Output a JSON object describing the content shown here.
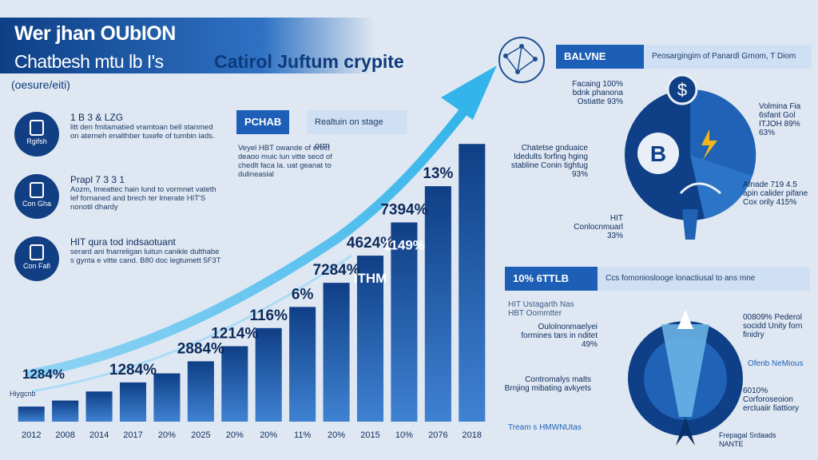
{
  "header": {
    "line1": "Wer jhan OUbION",
    "line2a": "Chatbesh mtu lb I's",
    "line2b": "Catirol Juftum crypite",
    "line3": "(oesure/eiti)"
  },
  "features": [
    {
      "icon": "document-icon",
      "caption": "Rgifsh",
      "title": "1 B 3 & LZG",
      "text": "litt den fmitamatied vramtoan bell stanmed on aterneh enalthber tuxefe of tumbin iads."
    },
    {
      "icon": "id-card-icon",
      "caption": "Con Gha",
      "title": "Prapl 7 3 3 1",
      "text": "Aozm, lmeattec hain lund to vormnet vateth lef fornaned and brech ter lmerate HIT'S nonotil dhardy"
    },
    {
      "icon": "pen-icon",
      "caption": "Con Fafi",
      "title": "HIT qura tod indsaotuant",
      "text": "serard ani fnarreligan luitun canikle dulthabe s gynta e vitte cand. B80 doc legtumett 5F3T"
    }
  ],
  "center": {
    "tag_dark": "PCHAB",
    "tag_light": "Realtuin on stage orm",
    "note": "Veyel HBT owande of erect deaoo muic lun vitte secd of chedlt faca la. uat geanat to dulineasial"
  },
  "chart_data": {
    "type": "bar",
    "categories": [
      "2012",
      "2008",
      "2014",
      "2017",
      "20%",
      "2025",
      "20%",
      "20%",
      "11%",
      "20%",
      "2015",
      "10%",
      "2076",
      "2018"
    ],
    "values": [
      5,
      7,
      10,
      13,
      16,
      20,
      25,
      31,
      38,
      46,
      55,
      66,
      78,
      92
    ],
    "ylim": [
      0,
      100
    ],
    "bar_labels": [
      {
        "bar": 3,
        "text": "1284%"
      },
      {
        "bar": 5,
        "text": "2884%"
      },
      {
        "bar": 6,
        "text": "1214%"
      },
      {
        "bar": 7,
        "text": "116%"
      },
      {
        "bar": 8,
        "text": "6%"
      },
      {
        "bar": 9,
        "text": "7284%"
      },
      {
        "bar": 10,
        "text": "4624%"
      },
      {
        "bar": 10,
        "text": "ITHM"
      },
      {
        "bar": 11,
        "text": "7394%"
      },
      {
        "bar": 11,
        "text": "1149%"
      },
      {
        "bar": 12,
        "text": "13%"
      }
    ],
    "start_label": "1284%",
    "small_label": "Hiygcnb",
    "colors": {
      "bar_dark": "#0f3f86",
      "bar_light": "#3f82d2",
      "arrow": "#33b4ea"
    }
  },
  "right_top": {
    "tag_dark": "BALVNE",
    "tag_light": "Peosargingim of Panardl Grnom, T Diom",
    "labels": [
      {
        "text": "Facaing 100% bdnk phanona Ostiatte 93%",
        "side": "left"
      },
      {
        "text": "Volmina Fia 6sfant Gol ITJOH 89% 63%",
        "side": "right"
      },
      {
        "text": "Chatetse gnduaice Idedults forfing hging stabline Conin tightug 93%",
        "side": "left"
      },
      {
        "text": "Afnade 719 4.5 apin calider pifane Cox orily 415%",
        "side": "right"
      },
      {
        "text": "HIT Conlocnmuarl 33%",
        "side": "left"
      }
    ],
    "pie_letter": "B",
    "coin_symbol": "$",
    "colors": {
      "primary": "#0f3f86",
      "secondary": "#1f62b6",
      "accent": "#f2b51c"
    }
  },
  "right_bottom": {
    "tag_dark": "10% 6TTLB",
    "tag_light": "Ccs fomonioslooge lonactiusal to ans mne",
    "labels": [
      {
        "text": "HIT Ustagarth Nas HBT Oommtter",
        "side": "left"
      },
      {
        "text": "Oulolnonmaelyei formines tars in nditet 49%",
        "side": "left"
      },
      {
        "text": "00809% Pederol socidd Unity forn finidry",
        "side": "right"
      },
      {
        "text": "Ofenb NeMious",
        "side": "right"
      },
      {
        "text": "Contromalys malts Brnjing mibating avkyets",
        "side": "left"
      },
      {
        "text": "6010% Corforoseoion ercluaiir fiattiory",
        "side": "right"
      },
      {
        "text": "Tream s HMWNUtas",
        "side": "left"
      },
      {
        "text": "Frepagal Srdaads NANTE",
        "side": "right"
      }
    ]
  }
}
